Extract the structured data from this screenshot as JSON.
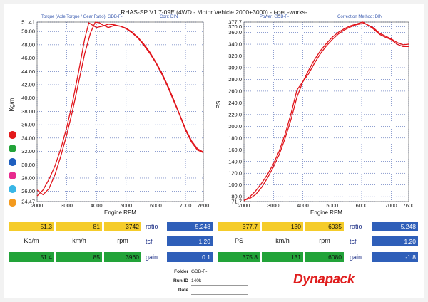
{
  "header": {
    "title": "RHAS-SP V1.7-09E  (4WD - Motor Vehicle 2000+3000) - t-get -works-",
    "left_info": "Torque (Axle Torque / Gear Ratio): GDB-F-",
    "left_corr": "Corr: DIN",
    "right_info": "Power: GDB-F-",
    "right_corr": "Correction Method: DIN"
  },
  "colors": {
    "curve": "#e0141b",
    "grid": "#1f3fa0",
    "highlight_yellow": "#f5cc2a",
    "highlight_green": "#22a339",
    "highlight_blue": "#2f5fb9",
    "swatches": [
      "#e31a1c",
      "#22a339",
      "#1f5fbf",
      "#e82a8e",
      "#39b6e6",
      "#f39a1e"
    ]
  },
  "chart_data": [
    {
      "type": "line",
      "ylabel": "Kg/m",
      "xlabel": "Engine RPM",
      "xlim": [
        2000,
        7600
      ],
      "ylim": [
        24.47,
        51.41
      ],
      "x_ticks": [
        2000,
        3000,
        4000,
        5000,
        6000,
        7000,
        7600
      ],
      "y_ticks": [
        51.41,
        50.0,
        48.0,
        46.0,
        44.0,
        42.0,
        40.0,
        38.0,
        36.0,
        34.0,
        32.0,
        30.0,
        28.0,
        26.0,
        24.47
      ],
      "y_tick_labels": [
        "51.41",
        "50.00",
        "48.00",
        "46.00",
        "44.00",
        "42.00",
        "40.00",
        "38.00",
        "36.00",
        "34.00",
        "32.00",
        "30.00",
        "28.00",
        "26.00",
        "24.47"
      ],
      "grid": true,
      "series": [
        {
          "x": [
            2000,
            2200,
            2400,
            2600,
            2800,
            3000,
            3200,
            3400,
            3600,
            3742,
            3850,
            4000,
            4200,
            4400,
            4600,
            4800,
            5000,
            5200,
            5400,
            5600,
            5800,
            6000,
            6200,
            6400,
            6600,
            6800,
            7000,
            7200,
            7400,
            7600
          ],
          "y": [
            25.3,
            26.2,
            27.8,
            29.8,
            32.4,
            35.6,
            39.5,
            44.0,
            48.8,
            51.3,
            51.0,
            50.6,
            50.8,
            51.1,
            51.0,
            50.8,
            50.4,
            49.8,
            49.0,
            47.9,
            46.7,
            45.3,
            43.6,
            41.7,
            39.6,
            37.5,
            35.2,
            33.4,
            32.2,
            31.8
          ]
        },
        {
          "x": [
            2000,
            2200,
            2400,
            2600,
            2800,
            3000,
            3200,
            3400,
            3600,
            3800,
            3960,
            4100,
            4200,
            4400,
            4600,
            4800,
            5000,
            5200,
            5400,
            5600,
            5800,
            6000,
            6200,
            6400,
            6600,
            6800,
            7000,
            7200,
            7400,
            7600
          ],
          "y": [
            26.2,
            25.5,
            26.4,
            28.5,
            31.3,
            34.5,
            38.2,
            42.4,
            46.6,
            49.8,
            51.4,
            51.3,
            51.0,
            50.6,
            50.9,
            50.8,
            50.5,
            49.9,
            49.1,
            48.1,
            46.9,
            45.4,
            43.8,
            41.9,
            39.8,
            37.6,
            35.4,
            33.6,
            32.4,
            31.9
          ]
        }
      ]
    },
    {
      "type": "line",
      "ylabel": "PS",
      "xlabel": "Engine RPM",
      "xlim": [
        2000,
        7600
      ],
      "ylim": [
        71.7,
        377.7
      ],
      "x_ticks": [
        2000,
        3000,
        4000,
        5000,
        6000,
        7000,
        7600
      ],
      "y_ticks": [
        377.7,
        370,
        360,
        340,
        320,
        300,
        280,
        260,
        240,
        220,
        200,
        180,
        160,
        140,
        120,
        100,
        80,
        71.7
      ],
      "y_tick_labels": [
        "377.7",
        "370.0",
        "360.0",
        "340.0",
        "320.0",
        "300.0",
        "280.0",
        "260.0",
        "240.0",
        "220.0",
        "200.0",
        "180.0",
        "160.0",
        "140.0",
        "120.0",
        "100.0",
        "80.0",
        "71.7"
      ],
      "grid": true,
      "series": [
        {
          "x": [
            2000,
            2200,
            2400,
            2600,
            2800,
            3000,
            3200,
            3400,
            3600,
            3800,
            4000,
            4200,
            4400,
            4600,
            4800,
            5000,
            5200,
            5400,
            5600,
            5800,
            6035,
            6200,
            6400,
            6600,
            6800,
            7000,
            7200,
            7400,
            7600
          ],
          "y": [
            73,
            80,
            90,
            103,
            118,
            136,
            158,
            187,
            222,
            262,
            276,
            296,
            314,
            329,
            341,
            352,
            360,
            366,
            371,
            374,
            377.7,
            373,
            366,
            357,
            352,
            348,
            340,
            336,
            336
          ]
        },
        {
          "x": [
            2000,
            2200,
            2400,
            2600,
            2800,
            3000,
            3200,
            3400,
            3600,
            3800,
            4000,
            4200,
            4400,
            4600,
            4800,
            5000,
            5200,
            5400,
            5600,
            5800,
            6080,
            6200,
            6400,
            6600,
            6800,
            7000,
            7200,
            7400,
            7600
          ],
          "y": [
            74,
            77,
            84,
            96,
            112,
            131,
            152,
            180,
            212,
            250,
            276,
            290,
            308,
            324,
            337,
            348,
            357,
            364,
            369,
            373,
            375.8,
            373,
            368,
            359,
            354,
            349,
            343,
            339,
            340
          ]
        }
      ]
    }
  ],
  "stats_left": {
    "row1": {
      "torque": "51.3",
      "speed": "81",
      "rpm": "3742"
    },
    "units": {
      "torque": "Kg/m",
      "speed": "km/h",
      "rpm": "rpm"
    },
    "row3": {
      "torque": "51.4",
      "speed": "85",
      "rpm": "3960"
    },
    "ratio_label": "ratio",
    "ratio_value": "5.248",
    "tcf_label": "tcf",
    "tcf_value": "1.20",
    "gain_label": "gain",
    "gain_value": "0.1"
  },
  "stats_right": {
    "row1": {
      "power": "377.7",
      "speed": "130",
      "rpm": "6035"
    },
    "units": {
      "power": "PS",
      "speed": "km/h",
      "rpm": "rpm"
    },
    "row3": {
      "power": "375.8",
      "speed": "131",
      "rpm": "6080"
    },
    "ratio_label": "ratio",
    "ratio_value": "5.248",
    "tcf_label": "tcf",
    "tcf_value": "1.20",
    "gain_label": "gain",
    "gain_value": "-1.8"
  },
  "footer": {
    "folder_label": "Folder",
    "folder_value": "GDB-F-",
    "run_label": "Run ID",
    "run_value": "140k",
    "date_label": "Date",
    "date_value": "",
    "logo": "Dynapack"
  }
}
